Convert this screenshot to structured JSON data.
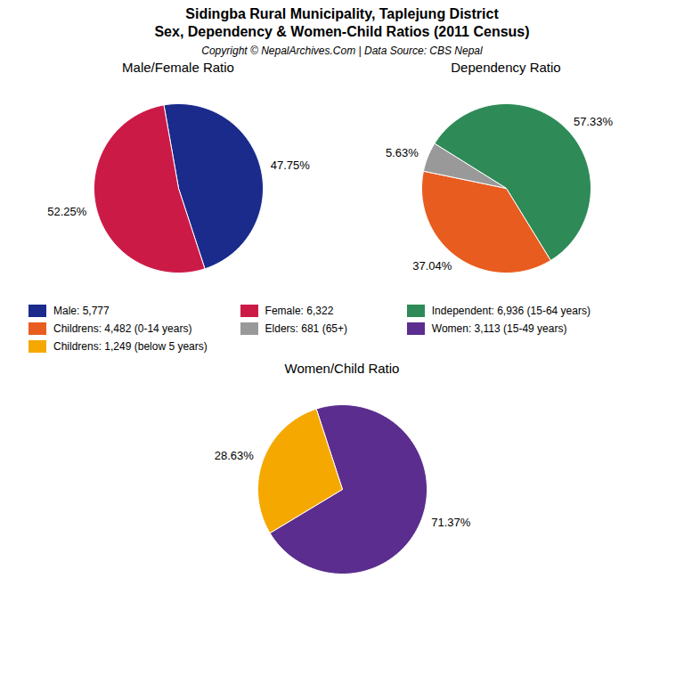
{
  "title": "Sidingba Rural Municipality, Taplejung District",
  "subtitle": "Sex, Dependency & Women-Child Ratios (2011 Census)",
  "annotations": [
    "Copyright © NepalArchives.Com | Data Source: CBS Nepal"
  ],
  "chart_data": [
    {
      "type": "pie",
      "title": "Male/Female Ratio",
      "categories": [
        "Male: 5,777",
        "Female: 6,322"
      ],
      "values": [
        47.75,
        52.25
      ],
      "value_labels": [
        "47.75%",
        "52.25%"
      ],
      "colors": [
        "#1a2b8c",
        "#cc1a47"
      ],
      "data_labels": true,
      "legend": "center"
    },
    {
      "type": "pie",
      "title": "Dependency Ratio",
      "categories": [
        "Independent: 6,936 (15-64 years)",
        "Childrens: 4,482 (0-14 years)",
        "Elders: 681 (65+)"
      ],
      "values": [
        57.33,
        37.04,
        5.63
      ],
      "value_labels": [
        "57.33%",
        "37.04%",
        "5.63%"
      ],
      "colors": [
        "#2e8b57",
        "#e85c20",
        "#999999"
      ],
      "data_labels": true,
      "legend": "center"
    },
    {
      "type": "pie",
      "title": "Women/Child Ratio",
      "categories": [
        "Women: 3,113 (15-49 years)",
        "Childrens: 1,249 (below 5 years)"
      ],
      "values": [
        71.37,
        28.63
      ],
      "value_labels": [
        "71.37%",
        "28.63%"
      ],
      "colors": [
        "#5b2d8e",
        "#f5a800"
      ],
      "data_labels": true,
      "legend": "center"
    }
  ]
}
